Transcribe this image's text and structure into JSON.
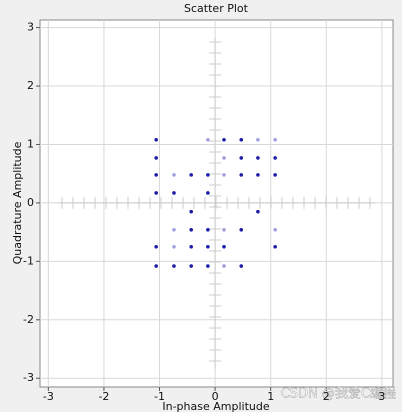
{
  "chart_data": {
    "type": "scatter",
    "title": "Scatter Plot",
    "x_label": "In-phase Amplitude",
    "y_label": "Quadrature Amplitude",
    "watermark": "CSDN @我爱C编程",
    "xlim": [
      -3.15,
      3.2
    ],
    "ylim": [
      -3.15,
      3.13
    ],
    "xticks": [
      -3,
      -2,
      -1,
      0,
      1,
      2,
      3
    ],
    "yticks": [
      -3,
      -2,
      -1,
      0,
      1,
      2,
      3
    ],
    "grid": true,
    "series": [
      {
        "color": "#1c1ca8",
        "x": [
          -1.06,
          0.16,
          0.47,
          -1.06,
          0.47,
          0.77,
          1.08,
          -1.06,
          -0.43,
          -0.13,
          0.47,
          0.77,
          1.08,
          -1.06,
          -0.74,
          -0.13,
          -0.43,
          0.77,
          -0.43,
          -0.13,
          0.47,
          -1.06,
          -0.43,
          -0.13,
          0.16,
          1.08,
          -1.06,
          -0.74,
          -0.43,
          -0.13,
          0.47
        ],
        "y": [
          1.08,
          1.08,
          1.08,
          0.77,
          0.77,
          0.77,
          0.77,
          0.48,
          0.48,
          0.48,
          0.48,
          0.48,
          0.48,
          0.17,
          0.17,
          0.17,
          -0.15,
          -0.15,
          -0.46,
          -0.46,
          -0.46,
          -0.75,
          -0.75,
          -0.75,
          -0.75,
          -0.75,
          -1.08,
          -1.08,
          -1.08,
          -1.08,
          -1.08
        ]
      },
      {
        "color": "#a0a0e0",
        "x": [
          -0.13,
          0.77,
          1.08,
          0.16,
          -0.74,
          0.16,
          -0.74,
          0.16,
          1.08,
          -0.74,
          0.16
        ],
        "y": [
          1.08,
          1.08,
          1.08,
          0.77,
          0.48,
          0.48,
          -0.46,
          -0.46,
          -0.46,
          -0.75,
          -1.08
        ]
      }
    ]
  }
}
